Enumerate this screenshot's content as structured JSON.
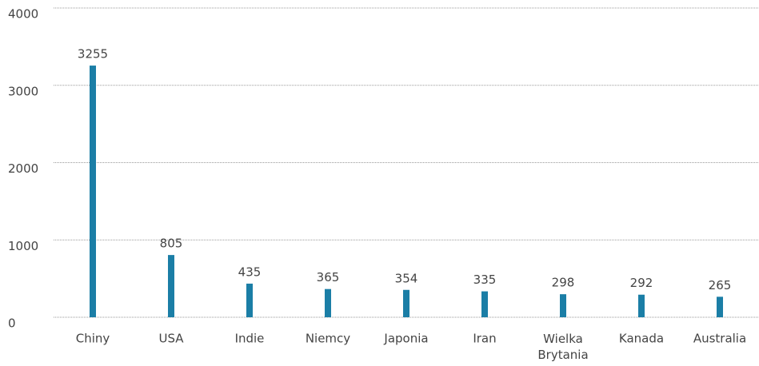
{
  "chart_data": {
    "type": "bar",
    "categories": [
      "Chiny",
      "USA",
      "Indie",
      "Niemcy",
      "Japonia",
      "Iran",
      "Wielka Brytania",
      "Kanada",
      "Australia"
    ],
    "values": [
      3255,
      805,
      435,
      365,
      354,
      335,
      298,
      292,
      265
    ],
    "color": "#1b7ea6",
    "ylim": [
      0,
      4000
    ],
    "yticks": [
      0,
      1000,
      2000,
      3000,
      4000
    ],
    "grid": true
  }
}
